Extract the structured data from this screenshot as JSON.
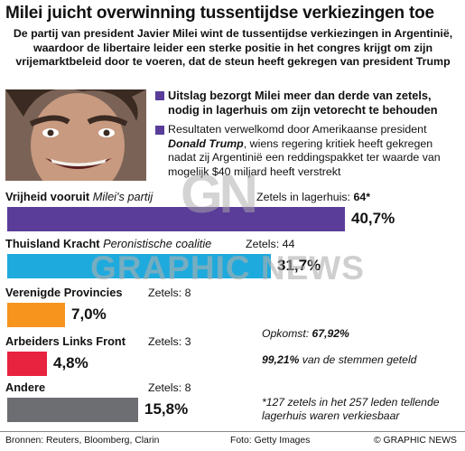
{
  "title": "Milei juicht overwinning tussentijdse verkiezingen toe",
  "subtitle": "De partij van president Javier Milei wint de tussentijdse verkiezingen in Argentinië, waardoor de libertaire leider een sterke positie in het congres krijgt om zijn vrijemarktbeleid door te voeren, dat de steun heeft gekregen van president Trump",
  "bullets": [
    {
      "text": "Uitslag bezorgt Milei meer dan derde van zetels, nodig in lagerhuis om zijn vetorecht te behouden"
    },
    {
      "before": "Resultaten verwelkomd door Amerikaanse president ",
      "emph": "Donald Trump",
      "after": ", wiens regering kritiek heeft gekregen nadat zij Argentinië een reddingspakket ter waarde van mogelijk $40 miljard heeft verstrekt"
    }
  ],
  "seats_label": "Zetels:",
  "seats_in_lagerhuis_label": "Zetels in lagerhuis:",
  "chart_data": {
    "type": "bar",
    "orientation": "horizontal",
    "categories": [
      "Vrijheid vooruit",
      "Thuisland Kracht",
      "Verenigde Provincies",
      "Arbeiders Links Front",
      "Andere"
    ],
    "subtitles": [
      "Milei's partij",
      "Peronistische coalitie",
      "",
      "",
      ""
    ],
    "values": [
      40.7,
      31.7,
      7.0,
      4.8,
      15.8
    ],
    "value_labels": [
      "40,7%",
      "31,7%",
      "7,0%",
      "4,8%",
      "15,8%"
    ],
    "seats": [
      64,
      44,
      8,
      3,
      8
    ],
    "seats_labels": [
      "64*",
      "44",
      "8",
      "3",
      "8"
    ],
    "colors": [
      "#5a3d99",
      "#1eaadd",
      "#f7941d",
      "#e8233f",
      "#6d6e71"
    ],
    "xlim": [
      0,
      45
    ]
  },
  "notes": {
    "turnout_label": "Opkomst:",
    "turnout_value": "67,92%",
    "valid_value": "99,21%",
    "valid_text": "van de stemmen geteld",
    "footnote": "*127 zetels in het 257 leden tellende lagerhuis waren verkiesbaar"
  },
  "footer": {
    "sources": "Bronnen: Reuters, Bloomberg, Clarin",
    "photo": "Foto: Getty Images",
    "credit": "© GRAPHIC NEWS"
  },
  "watermark": {
    "logo": "GN",
    "text": "GRAPHIC NEWS"
  }
}
